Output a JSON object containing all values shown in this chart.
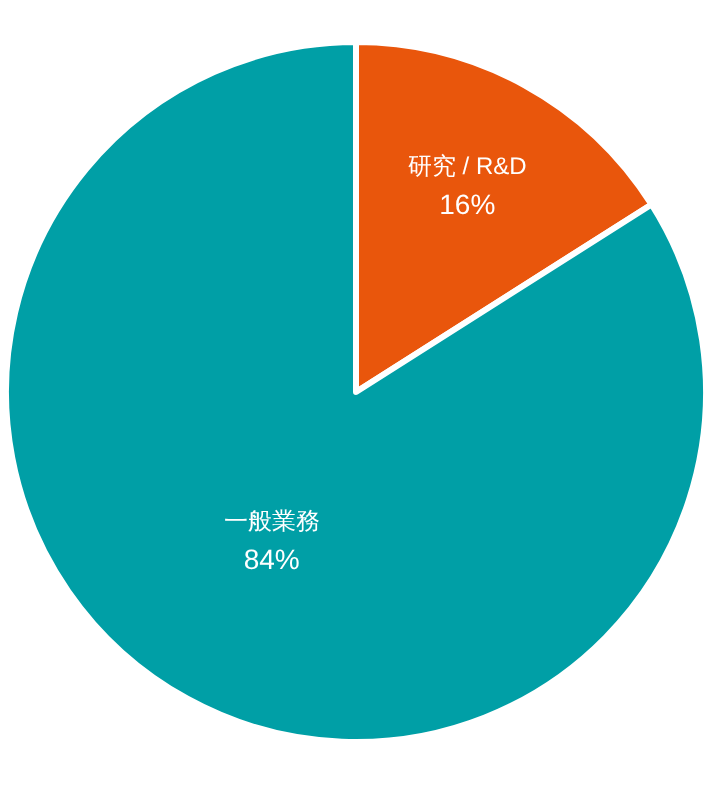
{
  "chart_data": {
    "type": "pie",
    "categories": [
      "研究 / R&D",
      "一般業務"
    ],
    "values": [
      16,
      84
    ],
    "colors": [
      "#e9560c",
      "#009fa6"
    ],
    "value_labels": [
      "16%",
      "84%"
    ]
  }
}
